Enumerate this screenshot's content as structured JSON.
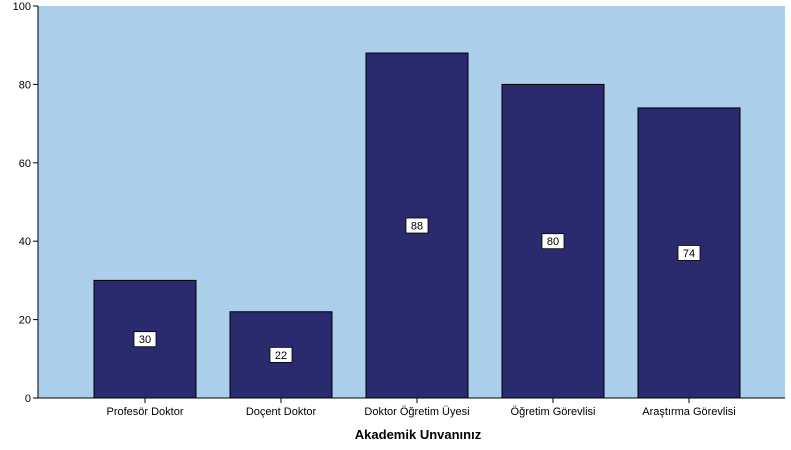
{
  "chart_data": {
    "type": "bar",
    "title": "",
    "xlabel": "Akademik Unvanınız",
    "ylabel": "",
    "categories": [
      "Profesör Doktor",
      "Doçent Doktor",
      "Doktor Öğretim Üyesi",
      "Öğretim Görevlisi",
      "Araştırma Görevlisi"
    ],
    "values": [
      30,
      22,
      88,
      80,
      74
    ],
    "data_labels": [
      "30",
      "22",
      "88",
      "80",
      "74"
    ],
    "ylim": [
      0,
      100
    ],
    "yticks": [
      0,
      20,
      40,
      60,
      80,
      100
    ],
    "ytick_labels": [
      "0",
      "20",
      "40",
      "60",
      "80",
      "100"
    ],
    "grid": false,
    "legend": "none",
    "colors": {
      "plot_background": "#abcfeb",
      "bar_fill": "#2a2a6e",
      "bar_stroke": "#000000",
      "label_box": "#ffffff",
      "text": "#000000"
    }
  }
}
